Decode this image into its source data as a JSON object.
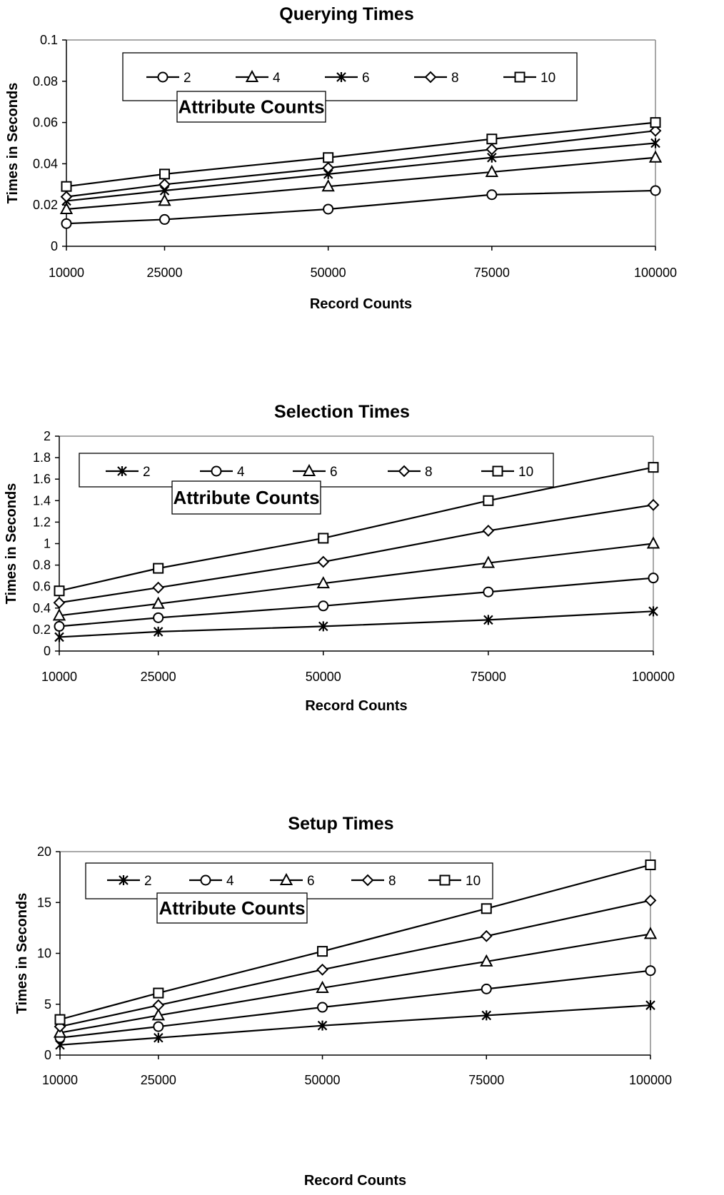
{
  "chart_data": [
    {
      "type": "line",
      "title": "Querying Times",
      "xlabel": "Record Counts",
      "ylabel": "Times in Seconds",
      "categories": [
        "10000",
        "25000",
        "50000",
        "75000",
        "100000"
      ],
      "x": [
        10000,
        25000,
        50000,
        75000,
        100000
      ],
      "ylim": [
        0,
        0.1
      ],
      "yticks": [
        "0",
        "0.02",
        "0.04",
        "0.06",
        "0.08",
        "0.1"
      ],
      "legend_title": "Attribute Counts",
      "legend_position": "top",
      "grid": false,
      "series": [
        {
          "name": "2",
          "marker": "circle",
          "values": [
            0.011,
            0.013,
            0.018,
            0.025,
            0.027
          ]
        },
        {
          "name": "4",
          "marker": "triangle",
          "values": [
            0.018,
            0.022,
            0.029,
            0.036,
            0.043
          ]
        },
        {
          "name": "6",
          "marker": "asterisk",
          "values": [
            0.022,
            0.027,
            0.035,
            0.043,
            0.05
          ]
        },
        {
          "name": "8",
          "marker": "diamond",
          "values": [
            0.024,
            0.03,
            0.038,
            0.047,
            0.056
          ]
        },
        {
          "name": "10",
          "marker": "square",
          "values": [
            0.029,
            0.035,
            0.043,
            0.052,
            0.06
          ]
        }
      ]
    },
    {
      "type": "line",
      "title": "Selection Times",
      "xlabel": "Record Counts",
      "ylabel": "Times in Seconds",
      "categories": [
        "10000",
        "25000",
        "50000",
        "75000",
        "100000"
      ],
      "x": [
        10000,
        25000,
        50000,
        75000,
        100000
      ],
      "ylim": [
        0,
        2
      ],
      "yticks": [
        "0",
        "0.2",
        "0.4",
        "0.6",
        "0.8",
        "1",
        "1.2",
        "1.4",
        "1.6",
        "1.8",
        "2"
      ],
      "legend_title": "Attribute Counts",
      "legend_position": "top",
      "grid": false,
      "series": [
        {
          "name": "2",
          "marker": "asterisk",
          "values": [
            0.13,
            0.18,
            0.23,
            0.29,
            0.37
          ]
        },
        {
          "name": "4",
          "marker": "circle",
          "values": [
            0.23,
            0.31,
            0.42,
            0.55,
            0.68
          ]
        },
        {
          "name": "6",
          "marker": "triangle",
          "values": [
            0.33,
            0.44,
            0.63,
            0.82,
            1.0
          ]
        },
        {
          "name": "8",
          "marker": "diamond",
          "values": [
            0.45,
            0.59,
            0.83,
            1.12,
            1.36
          ]
        },
        {
          "name": "10",
          "marker": "square",
          "values": [
            0.56,
            0.77,
            1.05,
            1.4,
            1.71
          ]
        }
      ]
    },
    {
      "type": "line",
      "title": "Setup Times",
      "xlabel": "Record Counts",
      "ylabel": "Times in Seconds",
      "categories": [
        "10000",
        "25000",
        "50000",
        "75000",
        "100000"
      ],
      "x": [
        10000,
        25000,
        50000,
        75000,
        100000
      ],
      "ylim": [
        0,
        20
      ],
      "yticks": [
        "0",
        "5",
        "10",
        "15",
        "20"
      ],
      "legend_title": "Attribute Counts",
      "legend_position": "top",
      "grid": false,
      "series": [
        {
          "name": "2",
          "marker": "asterisk",
          "values": [
            1.0,
            1.7,
            2.9,
            3.9,
            4.9
          ]
        },
        {
          "name": "4",
          "marker": "circle",
          "values": [
            1.7,
            2.8,
            4.7,
            6.5,
            8.3
          ]
        },
        {
          "name": "6",
          "marker": "triangle",
          "values": [
            2.2,
            3.9,
            6.6,
            9.2,
            11.9
          ]
        },
        {
          "name": "8",
          "marker": "diamond",
          "values": [
            2.8,
            4.9,
            8.4,
            11.7,
            15.2
          ]
        },
        {
          "name": "10",
          "marker": "square",
          "values": [
            3.5,
            6.1,
            10.2,
            14.4,
            18.7
          ]
        }
      ]
    }
  ]
}
